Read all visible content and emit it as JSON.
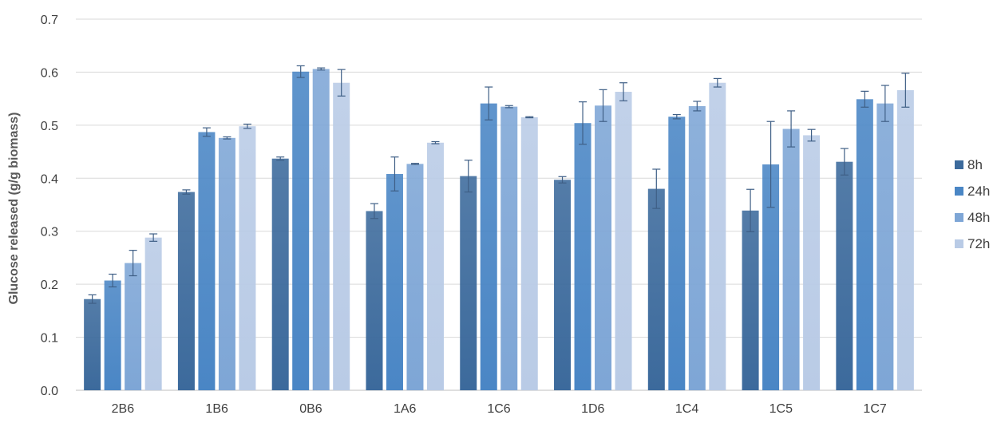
{
  "chart_data": {
    "type": "bar",
    "title": "",
    "xlabel": "",
    "ylabel": "Glucose released (g/g biomass)",
    "ylim": [
      0,
      0.7
    ],
    "yticks": [
      "0.0",
      "0.1",
      "0.2",
      "0.3",
      "0.4",
      "0.5",
      "0.6",
      "0.7"
    ],
    "grid": true,
    "legend": "right",
    "categories": [
      "2B6",
      "1B6",
      "0B6",
      "1A6",
      "1C6",
      "1D6",
      "1C4",
      "1C5",
      "1C7"
    ],
    "series": [
      {
        "name": "8h",
        "color": "#3c6a9c",
        "values": [
          0.172,
          0.374,
          0.437,
          0.338,
          0.404,
          0.397,
          0.38,
          0.339,
          0.431
        ],
        "errors": [
          0.008,
          0.004,
          0.003,
          0.014,
          0.03,
          0.006,
          0.037,
          0.04,
          0.025
        ]
      },
      {
        "name": "24h",
        "color": "#4a86c5",
        "values": [
          0.207,
          0.487,
          0.601,
          0.408,
          0.541,
          0.504,
          0.516,
          0.426,
          0.549
        ],
        "errors": [
          0.012,
          0.008,
          0.011,
          0.032,
          0.031,
          0.04,
          0.004,
          0.081,
          0.015
        ]
      },
      {
        "name": "48h",
        "color": "#7ea6d6",
        "values": [
          0.24,
          0.476,
          0.606,
          0.427,
          0.535,
          0.537,
          0.536,
          0.493,
          0.541
        ],
        "errors": [
          0.024,
          0.002,
          0.002,
          0.001,
          0.002,
          0.03,
          0.009,
          0.034,
          0.034
        ]
      },
      {
        "name": "72h",
        "color": "#b9cbe6",
        "values": [
          0.288,
          0.498,
          0.58,
          0.467,
          0.515,
          0.563,
          0.58,
          0.481,
          0.566
        ],
        "errors": [
          0.007,
          0.004,
          0.025,
          0.002,
          0.001,
          0.017,
          0.008,
          0.011,
          0.032
        ]
      }
    ]
  }
}
